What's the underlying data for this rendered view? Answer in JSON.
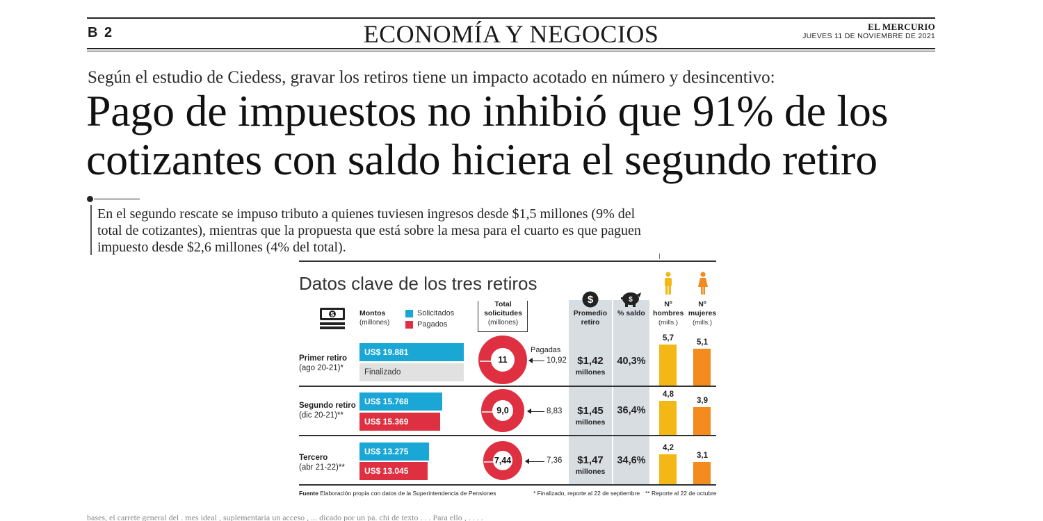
{
  "masthead": {
    "page_number": "B 2",
    "section": "ECONOMÍA Y NEGOCIOS",
    "newspaper": "EL MERCURIO",
    "date": "JUEVES 11 DE NOVIEMBRE DE 2021"
  },
  "article": {
    "kicker": "Según el estudio de Ciedess, gravar los retiros tiene un impacto acotado en número y desincentivo:",
    "headline": "Pago de impuestos no inhibió que 91% de los cotizantes con saldo hiciera el segundo retiro",
    "lede": "En el segundo rescate se impuso tributo a quienes tuviesen ingresos desde $1,5 millones (9% del total de cotizantes), mientras que la propuesta que está sobre la mesa para el cuarto es que paguen impuesto desde $2,6 millones (4% del total)."
  },
  "infographic": {
    "title": "Datos clave de los tres retiros",
    "headers": {
      "amounts": "Montos",
      "amounts_unit": "(millones)",
      "legend_requested": "Solicitados",
      "legend_paid": "Pagados",
      "total_requests": "Total solicitudes",
      "total_requests_unit": "(millones)",
      "avg": "Promedio retiro",
      "pct_balance": "% saldo",
      "men": "Nº hombres",
      "men_unit": "(mills.)",
      "women": "Nº mujeres",
      "women_unit": "(mills.)",
      "paid_label": "Pagadas"
    },
    "colors": {
      "requested": "#1aa7d6",
      "paid": "#df3041",
      "men": "#f3b816",
      "women": "#f38b1e",
      "panel": "#d8dde2"
    },
    "icons": [
      "money-stack-icon",
      "dollar-coin-icon",
      "piggy-bank-icon",
      "man-icon",
      "woman-icon"
    ],
    "rows": [
      {
        "name": "Primer retiro",
        "period": "(ago 20-21)*",
        "requested": "US$ 19.881",
        "requested_value": 19881,
        "paid": "Finalizado",
        "paid_value": null,
        "total": "11",
        "total_value": 11,
        "paid_count": "10,92",
        "paid_count_value": 10.92,
        "avg": "$1,42",
        "avg_unit": "millones",
        "pct": "40,3%",
        "men": "5,7",
        "men_value": 5.7,
        "women": "5,1",
        "women_value": 5.1
      },
      {
        "name": "Segundo retiro",
        "period": "(dic 20-21)**",
        "requested": "US$ 15.768",
        "requested_value": 15768,
        "paid": "US$ 15.369",
        "paid_value": 15369,
        "total": "9,0",
        "total_value": 9.0,
        "paid_count": "8,83",
        "paid_count_value": 8.83,
        "avg": "$1,45",
        "avg_unit": "millones",
        "pct": "36,4%",
        "men": "4,8",
        "men_value": 4.8,
        "women": "3,9",
        "women_value": 3.9
      },
      {
        "name": "Tercero",
        "period": "(abr 21-22)**",
        "requested": "US$ 13.275",
        "requested_value": 13275,
        "paid": "US$ 13.045",
        "paid_value": 13045,
        "total": "7,44",
        "total_value": 7.44,
        "paid_count": "7,36",
        "paid_count_value": 7.36,
        "avg": "$1,47",
        "avg_unit": "millones",
        "pct": "34,6%",
        "men": "4,2",
        "men_value": 4.2,
        "women": "3,1",
        "women_value": 3.1
      }
    ],
    "footer": {
      "source_label": "Fuente",
      "source": "Elaboración propia con datos de la Superintendencia de Pensiones",
      "note1": "* Finalizado, reporte al 22 de septiembre",
      "note2": "** Reporte al 22 de octubre"
    }
  },
  "bottom_text": "bases, el carrete general del . mes ideal , suplementaria un acceso , ... dicado por un pa. chi de texto . . . Para ello , . . . ."
}
